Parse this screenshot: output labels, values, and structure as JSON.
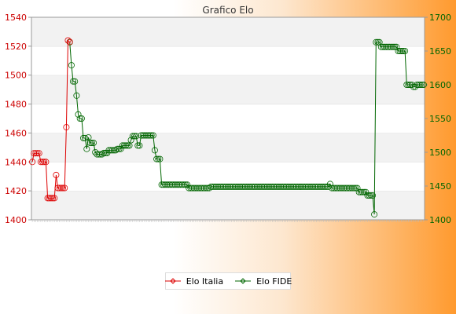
{
  "chart_data": {
    "type": "line",
    "title": "Grafico Elo",
    "y_left": {
      "min": 1400,
      "max": 1540,
      "ticks": [
        1400,
        1420,
        1440,
        1460,
        1480,
        1500,
        1520,
        1540
      ]
    },
    "y_right": {
      "min": 1400,
      "max": 1700,
      "ticks": [
        1400,
        1450,
        1500,
        1550,
        1600,
        1650,
        1700
      ]
    },
    "grid": "horizontal bands",
    "legend_position": "bottom",
    "series": [
      {
        "name": "Elo Italia",
        "color": "#dd0000",
        "axis": "left",
        "values": [
          1440,
          1446,
          1446,
          1446,
          1446,
          1440,
          1440,
          1440,
          1440,
          1415,
          1415,
          1415,
          1415,
          1415,
          1431,
          1422,
          1422,
          1422,
          1422,
          1422,
          1464,
          1524,
          1523
        ]
      },
      {
        "name": "Elo FIDE",
        "color": "#006600",
        "axis": "right",
        "values": [
          1663,
          1629,
          1605,
          1605,
          1584,
          1556,
          1550,
          1550,
          1521,
          1521,
          1505,
          1522,
          1514,
          1514,
          1514,
          1500,
          1497,
          1497,
          1497,
          1497,
          1499,
          1499,
          1499,
          1503,
          1503,
          1503,
          1503,
          1503,
          1505,
          1505,
          1505,
          1510,
          1510,
          1510,
          1510,
          1510,
          1518,
          1524,
          1524,
          1524,
          1510,
          1510,
          1525,
          1525,
          1525,
          1525,
          1525,
          1525,
          1525,
          1525,
          1503,
          1490,
          1490,
          1490,
          1452,
          1452,
          1452,
          1452,
          1452,
          1452,
          1452,
          1452,
          1452,
          1452,
          1452,
          1452,
          1452,
          1452,
          1452,
          1452,
          1447,
          1447,
          1447,
          1447,
          1447,
          1447,
          1447,
          1447,
          1447,
          1447,
          1447,
          1447,
          1447,
          1449,
          1449,
          1449,
          1449,
          1449,
          1449,
          1449,
          1449,
          1449,
          1449,
          1449,
          1449,
          1449,
          1449,
          1449,
          1449,
          1449,
          1449,
          1449,
          1449,
          1449,
          1449,
          1449,
          1449,
          1449,
          1449,
          1449,
          1449,
          1449,
          1449,
          1449,
          1449,
          1449,
          1449,
          1449,
          1449,
          1449,
          1449,
          1449,
          1449,
          1449,
          1449,
          1449,
          1449,
          1449,
          1449,
          1449,
          1449,
          1449,
          1449,
          1449,
          1449,
          1449,
          1449,
          1449,
          1449,
          1449,
          1449,
          1449,
          1449,
          1449,
          1449,
          1449,
          1449,
          1449,
          1449,
          1449,
          1449,
          1449,
          1449,
          1453,
          1447,
          1447,
          1447,
          1447,
          1447,
          1447,
          1447,
          1447,
          1447,
          1447,
          1447,
          1447,
          1447,
          1447,
          1447,
          1447,
          1441,
          1441,
          1441,
          1441,
          1441,
          1436,
          1436,
          1436,
          1436,
          1408,
          1663,
          1663,
          1663,
          1656,
          1656,
          1656,
          1656,
          1656,
          1656,
          1656,
          1656,
          1656,
          1656,
          1650,
          1650,
          1650,
          1650,
          1650,
          1600,
          1600,
          1600,
          1600,
          1597,
          1597,
          1600,
          1600,
          1600,
          1600,
          1600
        ],
        "start_index": 22
      }
    ]
  }
}
